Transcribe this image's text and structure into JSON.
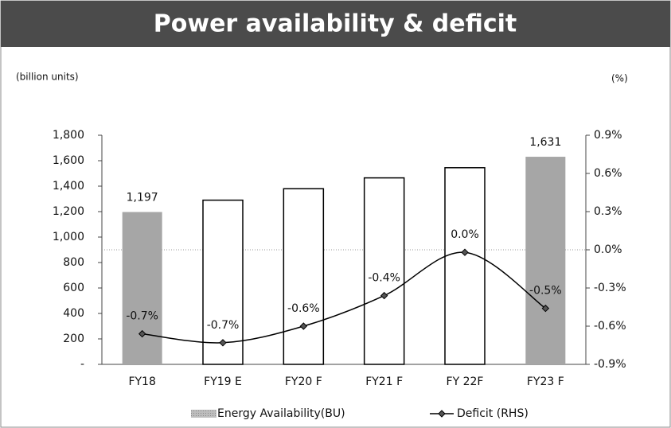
{
  "chart_data": {
    "type": "bar",
    "title": "Power availability & deficit",
    "y_label": "(billion units)",
    "y2_label": "(%)",
    "categories": [
      "FY18",
      "FY19 E",
      "FY20 F",
      "FY21 F",
      "FY 22F",
      "FY23 F"
    ],
    "series": [
      {
        "name": "Energy Availability(BU)",
        "type": "bar",
        "color": "#a6a6a6",
        "colors": [
          "#a6a6a6",
          "#ffffff",
          "#ffffff",
          "#ffffff",
          "#ffffff",
          "#a6a6a6"
        ],
        "values": [
          1197,
          1290,
          1380,
          1465,
          1545,
          1631
        ],
        "value_labels": [
          "1,197",
          null,
          null,
          null,
          null,
          "1,631"
        ]
      },
      {
        "name": "Deficit (RHS)",
        "type": "line",
        "axis": "y2",
        "color": "#000000",
        "values": [
          -0.66,
          -0.73,
          -0.6,
          -0.36,
          -0.02,
          -0.46
        ],
        "value_labels": [
          "-0.7%",
          "-0.7%",
          "-0.6%",
          "-0.4%",
          "0.0%",
          "-0.5%"
        ]
      }
    ],
    "ylim": [
      0,
      1800
    ],
    "yticks": [
      {
        "value": 0,
        "label": "-"
      },
      200,
      400,
      600,
      800,
      {
        "value": 1000,
        "label": "1,000"
      },
      {
        "value": 1200,
        "label": "1,200"
      },
      {
        "value": 1400,
        "label": "1,400"
      },
      {
        "value": 1600,
        "label": "1,600"
      },
      {
        "value": 1800,
        "label": "1,800"
      }
    ],
    "y2lim": [
      -0.9,
      0.9
    ],
    "y2ticks": [
      {
        "value": -0.9,
        "label": "-0.9%"
      },
      {
        "value": -0.6,
        "label": "-0.6%"
      },
      {
        "value": -0.3,
        "label": "-0.3%"
      },
      {
        "value": 0,
        "label": "0.0%"
      },
      {
        "value": 0.3,
        "label": "0.3%"
      },
      {
        "value": 0.6,
        "label": "0.6%"
      },
      {
        "value": 0.9,
        "label": "0.9%"
      }
    ],
    "legend": "bottom"
  }
}
